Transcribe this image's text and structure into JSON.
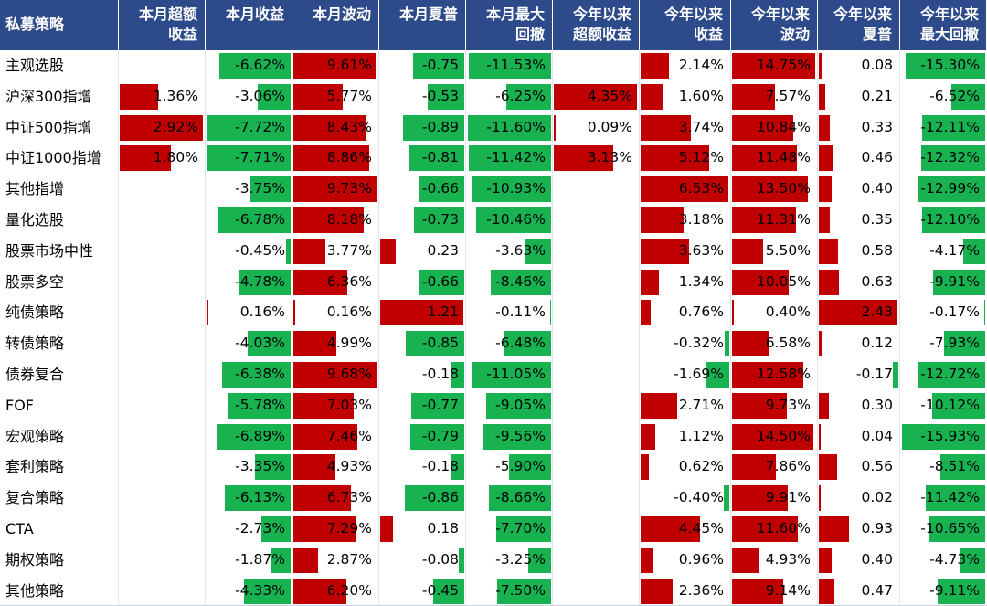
{
  "colors": {
    "header_bg": "#2d4a8a",
    "negative_bar": "#18b251",
    "positive_bar": "#c00000"
  },
  "header": {
    "first": "私募策略",
    "columns": [
      [
        "本月超额",
        "收益"
      ],
      [
        "本月收益"
      ],
      [
        "本月波动"
      ],
      [
        "本月夏普"
      ],
      [
        "本月最大",
        "回撤"
      ],
      [
        "今年以来",
        "超额收益"
      ],
      [
        "今年以来",
        "收益"
      ],
      [
        "今年以来",
        "波动"
      ],
      [
        "今年以来",
        "夏普"
      ],
      [
        "今年以来",
        "最大回撤"
      ]
    ]
  },
  "chart_data": {
    "type": "table",
    "columns": [
      "本月超额收益",
      "本月收益",
      "本月波动",
      "本月夏普",
      "本月最大回撤",
      "今年以来超额收益",
      "今年以来收益",
      "今年以来波动",
      "今年以来夏普",
      "今年以来最大回撤"
    ],
    "rows": [
      {
        "name": "主观选股",
        "values": [
          null,
          -6.62,
          9.61,
          -0.75,
          -11.53,
          null,
          2.14,
          14.75,
          0.08,
          -15.3
        ]
      },
      {
        "name": "沪深300指增",
        "values": [
          1.36,
          -3.06,
          5.77,
          -0.53,
          -6.25,
          4.35,
          1.6,
          7.57,
          0.21,
          -6.52
        ]
      },
      {
        "name": "中证500指增",
        "values": [
          2.92,
          -7.72,
          8.43,
          -0.89,
          -11.6,
          0.09,
          3.74,
          10.84,
          0.33,
          -12.11
        ]
      },
      {
        "name": "中证1000指增",
        "values": [
          1.8,
          -7.71,
          8.86,
          -0.81,
          -11.42,
          3.13,
          5.12,
          11.48,
          0.46,
          -12.32
        ]
      },
      {
        "name": "其他指增",
        "values": [
          null,
          -3.75,
          9.73,
          -0.66,
          -10.93,
          null,
          6.53,
          13.5,
          0.4,
          -12.99
        ]
      },
      {
        "name": "量化选股",
        "values": [
          null,
          -6.78,
          8.18,
          -0.73,
          -10.46,
          null,
          3.18,
          11.31,
          0.35,
          -12.1
        ]
      },
      {
        "name": "股票市场中性",
        "values": [
          null,
          -0.45,
          3.77,
          0.23,
          -3.63,
          null,
          3.63,
          5.5,
          0.58,
          -4.17
        ]
      },
      {
        "name": "股票多空",
        "values": [
          null,
          -4.78,
          6.36,
          -0.66,
          -8.46,
          null,
          1.34,
          10.05,
          0.63,
          -9.91
        ]
      },
      {
        "name": "纯债策略",
        "values": [
          null,
          0.16,
          0.16,
          1.21,
          -0.11,
          null,
          0.76,
          0.4,
          2.43,
          -0.17
        ]
      },
      {
        "name": "转债策略",
        "values": [
          null,
          -4.03,
          4.99,
          -0.85,
          -6.48,
          null,
          -0.32,
          6.58,
          0.12,
          -7.93
        ]
      },
      {
        "name": "债券复合",
        "values": [
          null,
          -6.38,
          9.68,
          -0.18,
          -11.05,
          null,
          -1.69,
          12.58,
          -0.17,
          -12.72
        ]
      },
      {
        "name": "FOF",
        "values": [
          null,
          -5.78,
          7.03,
          -0.77,
          -9.05,
          null,
          2.71,
          9.73,
          0.3,
          -10.12
        ]
      },
      {
        "name": "宏观策略",
        "values": [
          null,
          -6.89,
          7.46,
          -0.79,
          -9.56,
          null,
          1.12,
          14.5,
          0.04,
          -15.93
        ]
      },
      {
        "name": "套利策略",
        "values": [
          null,
          -3.35,
          4.93,
          -0.18,
          -5.9,
          null,
          0.62,
          7.86,
          0.56,
          -8.51
        ]
      },
      {
        "name": "复合策略",
        "values": [
          null,
          -6.13,
          6.73,
          -0.86,
          -8.66,
          null,
          -0.4,
          9.91,
          0.02,
          -11.42
        ]
      },
      {
        "name": "CTA",
        "values": [
          null,
          -2.73,
          7.29,
          0.18,
          -7.7,
          null,
          4.45,
          11.6,
          0.93,
          -10.65
        ]
      },
      {
        "name": "期权策略",
        "values": [
          null,
          -1.87,
          2.87,
          -0.08,
          -3.25,
          null,
          0.96,
          4.93,
          0.4,
          -4.73
        ]
      },
      {
        "name": "其他策略",
        "values": [
          null,
          -4.33,
          6.2,
          -0.45,
          -7.5,
          null,
          2.36,
          9.14,
          0.47,
          -9.11
        ]
      }
    ],
    "formats": [
      "pct",
      "pct",
      "pct",
      "num",
      "pct",
      "pct",
      "pct",
      "pct",
      "num",
      "pct"
    ]
  }
}
